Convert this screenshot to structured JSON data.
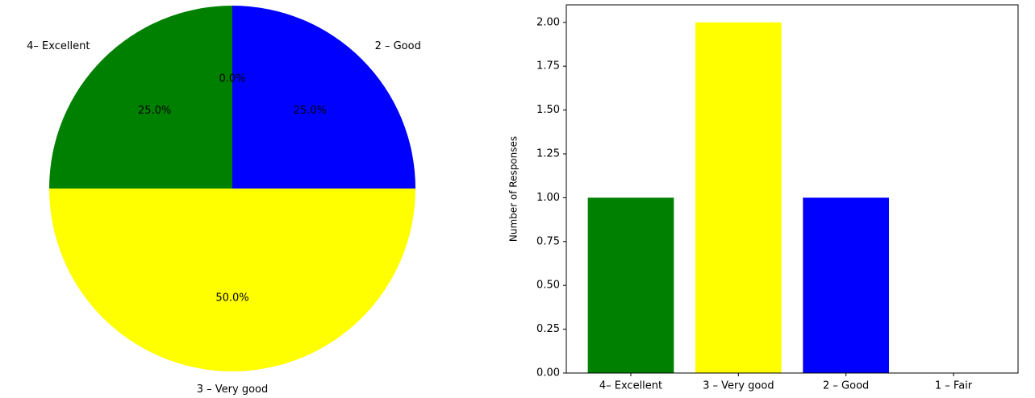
{
  "chart_data": [
    {
      "type": "pie",
      "labels": [
        "4– Excellent",
        "3 – Very good",
        "2 – Good",
        "1 – Fair"
      ],
      "values": [
        1,
        2,
        1,
        0
      ],
      "percent_labels": [
        "25.0%",
        "50.0%",
        "25.0%",
        "0.0%"
      ],
      "colors": [
        "#008000",
        "#ffff00",
        "#0000ff",
        "#ff0000"
      ],
      "start_angle_deg": 90,
      "direction": "counterclockwise"
    },
    {
      "type": "bar",
      "categories": [
        "4– Excellent",
        "3 – Very good",
        "2 – Good",
        "1 – Fair"
      ],
      "values": [
        1,
        2,
        1,
        0
      ],
      "colors": [
        "#008000",
        "#ffff00",
        "#0000ff",
        "#ff0000"
      ],
      "xlabel": "",
      "ylabel": "Number of Responses",
      "ylim": [
        0,
        2.1
      ],
      "yticks": [
        0,
        0.25,
        0.5,
        0.75,
        1.0,
        1.25,
        1.5,
        1.75,
        2.0
      ],
      "ytick_labels": [
        "0.00",
        "0.25",
        "0.50",
        "0.75",
        "1.00",
        "1.25",
        "1.50",
        "1.75",
        "2.00"
      ],
      "grid": false
    }
  ]
}
